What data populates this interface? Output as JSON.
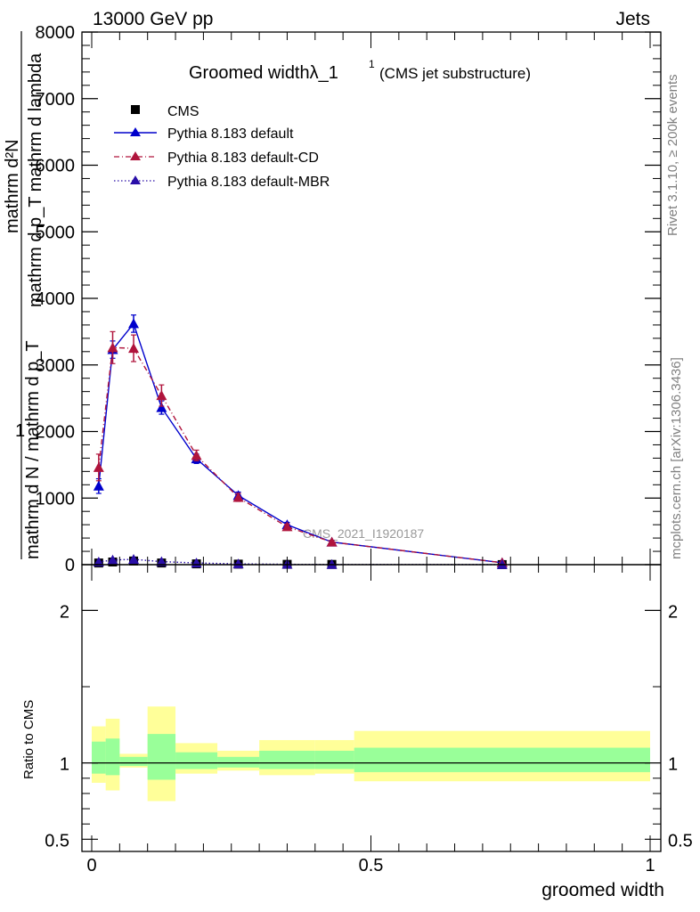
{
  "header": {
    "left": "13000 GeV pp",
    "right": "Jets"
  },
  "side_labels": {
    "rivet": "Rivet 3.1.10, ≥ 200k events",
    "mcplots": "mcplots.cern.ch [arXiv:1306.3436]"
  },
  "chart_data": {
    "type": "line",
    "title": "Groomed widthλ_1",
    "title_sup": "1",
    "title_suffix": "(CMS jet substructure)",
    "watermark": "CMS_2021_I1920187",
    "xlabel": "groomed width",
    "ylabel_main_numerator_line1": "mathrm d²N",
    "ylabel_main_numerator_line2": "mathrm d p_T mathrm d lambda",
    "ylabel_main_sub": "T",
    "ylabel_main_denominator": "mathrm d N / mathrm d p_T",
    "ylabel_main_one": "1",
    "ylabel_ratio": "Ratio to CMS",
    "xlim": [
      0,
      1
    ],
    "ylim_main": [
      0,
      8000
    ],
    "ylim_ratio": [
      0.42,
      2.3
    ],
    "x_ticks": [
      0,
      0.5,
      1
    ],
    "x_tick_labels": [
      "0",
      "0.5",
      "1"
    ],
    "y_ticks_main": [
      0,
      1000,
      2000,
      3000,
      4000,
      5000,
      6000,
      7000,
      8000
    ],
    "y_tick_labels_main": [
      "0",
      "1000",
      "2000",
      "3000",
      "4000",
      "5000",
      "6000",
      "7000",
      "8000"
    ],
    "y_ticks_ratio": [
      0.5,
      1,
      2
    ],
    "y_tick_labels_ratio": [
      "0.5",
      "1",
      "2"
    ],
    "bin_edges": [
      0,
      0.025,
      0.05,
      0.1,
      0.15,
      0.225,
      0.3,
      0.4,
      0.47,
      1.0
    ],
    "x": [
      0.0125,
      0.0375,
      0.075,
      0.125,
      0.1875,
      0.2625,
      0.35,
      0.43,
      0.735
    ],
    "legend": [
      "CMS",
      "Pythia 8.183 default",
      "Pythia 8.183 default-CD",
      "Pythia 8.183 default-MBR"
    ],
    "series": [
      {
        "name": "CMS",
        "style": "data",
        "color": "#000000",
        "values": [
          25,
          40,
          55,
          25,
          12,
          8,
          5,
          4,
          1
        ]
      },
      {
        "name": "Pythia 8.183 default",
        "style": "solid",
        "color": "#0000cc",
        "values": [
          1180,
          3230,
          3620,
          2360,
          1590,
          1040,
          600,
          340,
          30
        ],
        "errors": [
          110,
          130,
          130,
          100,
          70,
          50,
          35,
          25,
          8
        ]
      },
      {
        "name": "Pythia 8.183 default-CD",
        "style": "dashdot",
        "color": "#b0143c",
        "values": [
          1460,
          3260,
          3250,
          2540,
          1640,
          1010,
          570,
          340,
          30
        ],
        "errors": [
          200,
          240,
          200,
          160,
          80,
          60,
          40,
          25,
          8
        ]
      },
      {
        "name": "Pythia 8.183 default-MBR",
        "style": "dotted",
        "color": "#2a0fa8",
        "values": [
          40,
          70,
          80,
          45,
          25,
          12,
          6,
          3,
          1
        ]
      }
    ],
    "ratio_bands": {
      "yellow": [
        [
          0.87,
          1.24
        ],
        [
          0.82,
          1.29
        ],
        [
          0.97,
          1.06
        ],
        [
          0.75,
          1.37
        ],
        [
          0.93,
          1.13
        ],
        [
          0.95,
          1.08
        ],
        [
          0.92,
          1.15
        ],
        [
          0.93,
          1.15
        ],
        [
          0.88,
          1.21
        ]
      ],
      "green": [
        [
          0.93,
          1.14
        ],
        [
          0.92,
          1.16
        ],
        [
          0.98,
          1.04
        ],
        [
          0.89,
          1.19
        ],
        [
          0.96,
          1.07
        ],
        [
          0.97,
          1.04
        ],
        [
          0.96,
          1.08
        ],
        [
          0.96,
          1.08
        ],
        [
          0.94,
          1.1
        ]
      ]
    },
    "colors": {
      "yellow_band": "#ffff99",
      "green_band": "#99ff99",
      "axis": "#000000",
      "gray_text": "#808080"
    }
  }
}
